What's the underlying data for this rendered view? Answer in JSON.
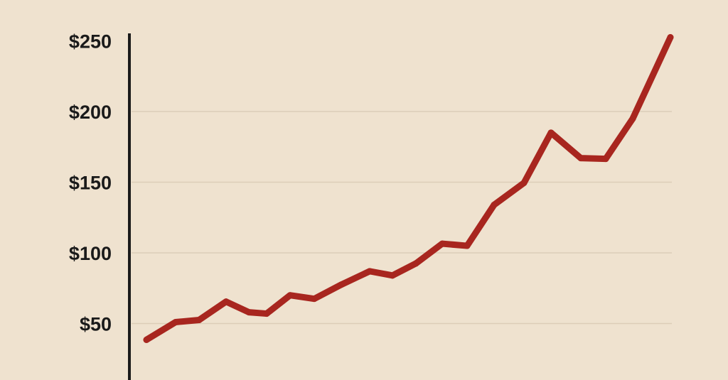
{
  "chart_data": {
    "type": "line",
    "title": "",
    "xlabel": "",
    "ylabel": "",
    "ylim": [
      0,
      250
    ],
    "y_ticks": [
      50,
      100,
      150,
      200,
      250
    ],
    "y_tick_labels": [
      "$50",
      "$100",
      "$150",
      "$200",
      "$250"
    ],
    "grid": "horizontal",
    "colors": {
      "line": "#a8261f",
      "background": "#efe2cf",
      "grid": "#dccdb8",
      "axis": "#1a1a1a"
    },
    "series": [
      {
        "values": [
          38.5,
          51,
          52.5,
          65.5,
          58,
          57,
          70,
          67.5,
          77.5,
          87,
          84,
          92.5,
          106.5,
          105,
          134,
          149.5,
          185,
          167,
          166.5,
          195,
          252.5
        ]
      }
    ]
  }
}
